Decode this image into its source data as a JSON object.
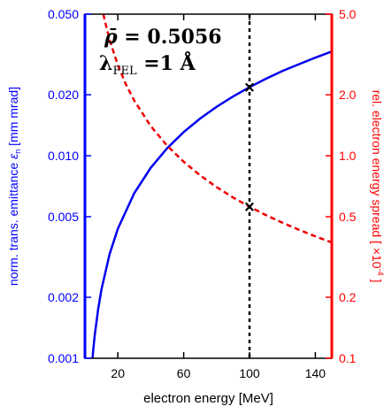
{
  "colors": {
    "left_axis": "#0000ff",
    "right_axis": "#ff0000",
    "emittance_curve": "#0000ee",
    "spread_curve": "#ee0000",
    "marker_line": "#000000"
  },
  "chart_data": {
    "type": "line",
    "xlabel": "electron energy [MeV]",
    "xlim": [
      0,
      150
    ],
    "x_ticks": [
      20,
      60,
      100,
      140
    ],
    "x_tick_labels": [
      "20",
      "60",
      "100",
      "140"
    ],
    "y_left": {
      "label_main": "norm. trans. emittance ",
      "label_symbol": "ε",
      "label_sub": "n",
      "label_unit": " [mm mrad]",
      "scale": "log",
      "lim": [
        0.001,
        0.05
      ],
      "ticks": [
        0.001,
        0.002,
        0.005,
        0.01,
        0.02,
        0.05
      ],
      "tick_labels": [
        "0.001",
        "0.002",
        "0.005",
        "0.010",
        "0.020",
        "0.050"
      ]
    },
    "y_right": {
      "label_main": "rel. electron energy spread [ ×10",
      "label_sup": "-4",
      "label_end": " ]",
      "scale": "log",
      "lim": [
        0.1,
        5.0
      ],
      "ticks": [
        0.1,
        0.2,
        0.5,
        1.0,
        2.0,
        5.0
      ],
      "tick_labels": [
        "0.1",
        "0.2",
        "0.5",
        "1.0",
        "2.0",
        "5.0"
      ]
    },
    "series": [
      {
        "axis": "left",
        "style": "solid",
        "x": [
          4.6,
          5,
          6,
          8,
          10,
          15,
          20,
          30,
          40,
          50,
          60,
          70,
          80,
          90,
          100,
          110,
          120,
          130,
          140,
          150
        ],
        "y": [
          0.001,
          0.00109,
          0.00131,
          0.00174,
          0.00218,
          0.00327,
          0.00436,
          0.00654,
          0.00872,
          0.0109,
          0.01308,
          0.01526,
          0.01744,
          0.01962,
          0.0218,
          0.024,
          0.0262,
          0.0283,
          0.0305,
          0.0327
        ]
      },
      {
        "axis": "right",
        "style": "dashed",
        "x": [
          11.2,
          12,
          15,
          20,
          25,
          30,
          40,
          50,
          60,
          70,
          80,
          90,
          100,
          110,
          120,
          130,
          140,
          150
        ],
        "y": [
          5.0,
          4.67,
          3.73,
          2.8,
          2.24,
          1.87,
          1.4,
          1.12,
          0.934,
          0.8,
          0.7,
          0.622,
          0.56,
          0.509,
          0.467,
          0.431,
          0.4,
          0.373
        ]
      }
    ],
    "vline_x": 100,
    "markers": [
      {
        "axis": "left",
        "x": 100,
        "y": 0.0218,
        "symbol": "×"
      },
      {
        "axis": "right",
        "x": 100,
        "y": 0.56,
        "symbol": "×"
      }
    ],
    "annotations": {
      "rho_symbol": "ρ̄",
      "rho_eq": " = 0.5056",
      "lambda_symbol": "λ",
      "lambda_sub": "FEL",
      "lambda_eq": " =1 Å"
    }
  }
}
